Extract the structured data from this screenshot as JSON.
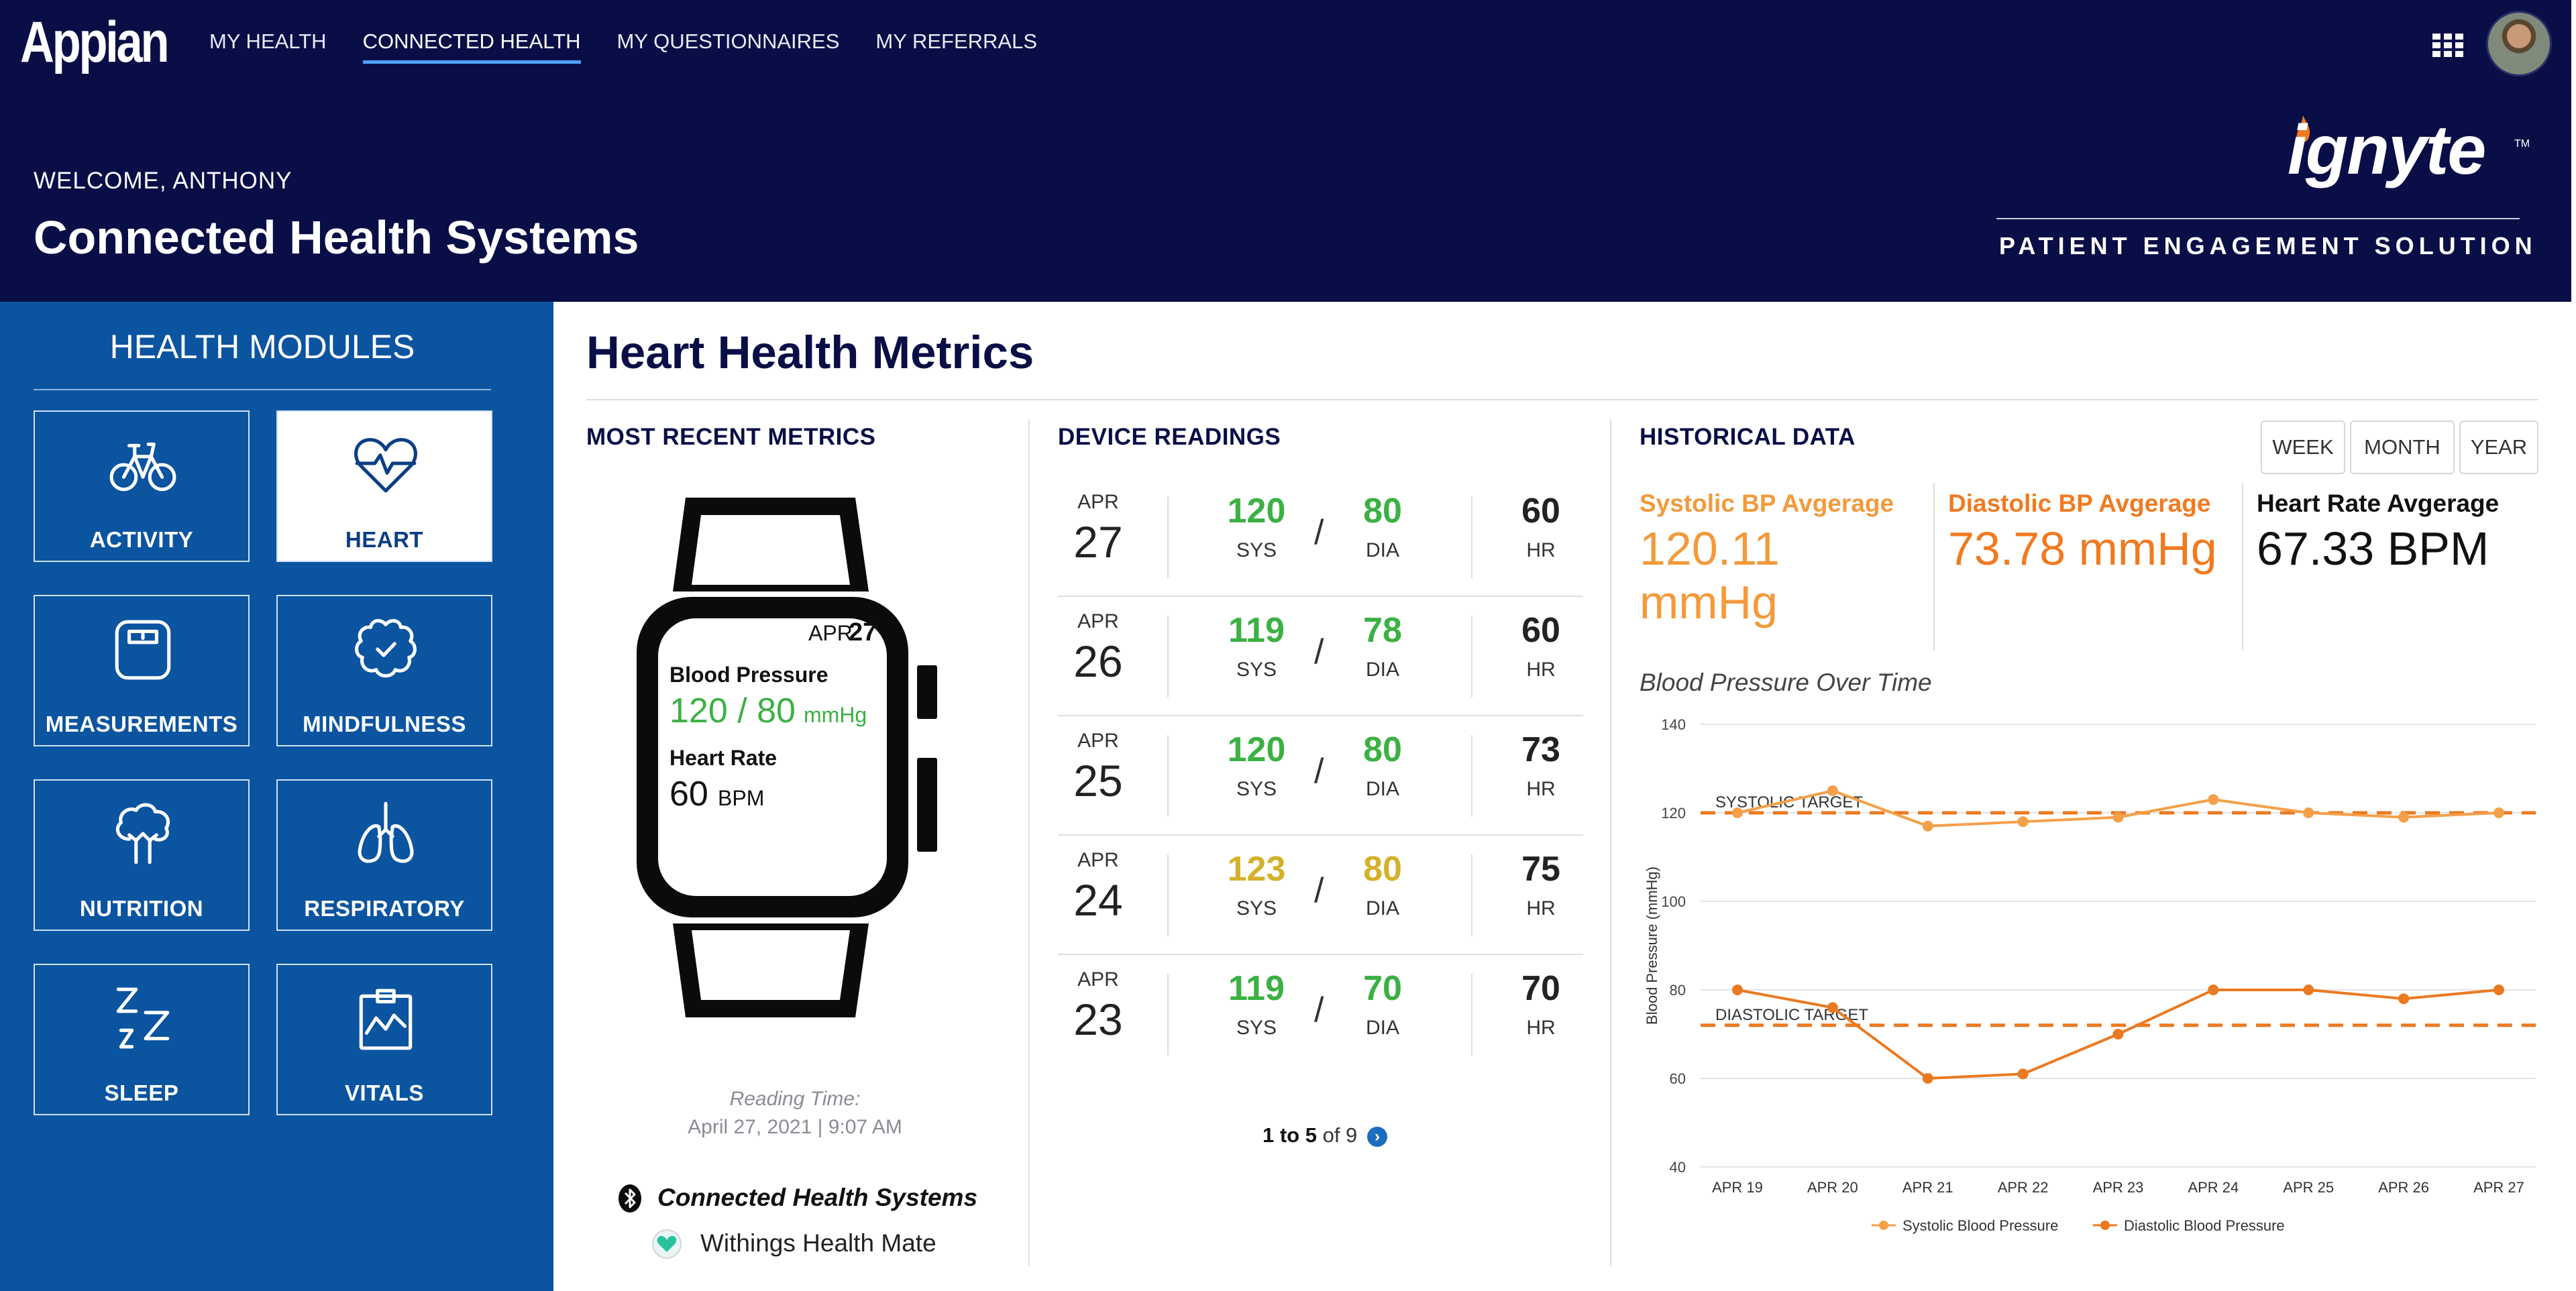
{
  "header": {
    "logo": "Appian",
    "nav": [
      "MY HEALTH",
      "CONNECTED HEALTH",
      "MY QUESTIONNAIRES",
      "MY REFERRALS"
    ],
    "nav_active_index": 1,
    "welcome": "WELCOME, ANTHONY",
    "title": "Connected Health Systems",
    "brand": "ignyte",
    "brand_tm": "TM",
    "brand_tagline": "PATIENT ENGAGEMENT SOLUTION"
  },
  "sidebar": {
    "title": "HEALTH MODULES",
    "modules": [
      {
        "label": "ACTIVITY",
        "icon": "bicycle-icon",
        "active": false
      },
      {
        "label": "HEART",
        "icon": "heart-pulse-icon",
        "active": true
      },
      {
        "label": "MEASUREMENTS",
        "icon": "scale-icon",
        "active": false
      },
      {
        "label": "MINDFULNESS",
        "icon": "brain-check-icon",
        "active": false
      },
      {
        "label": "NUTRITION",
        "icon": "broccoli-icon",
        "active": false
      },
      {
        "label": "RESPIRATORY",
        "icon": "lungs-icon",
        "active": false
      },
      {
        "label": "SLEEP",
        "icon": "sleep-zzz-icon",
        "active": false
      },
      {
        "label": "VITALS",
        "icon": "clipboard-chart-icon",
        "active": false
      }
    ]
  },
  "main": {
    "title": "Heart Health Metrics",
    "recent": {
      "title": "MOST RECENT METRICS",
      "date_month": "APR",
      "date_day": "27",
      "bp_label": "Blood Pressure",
      "bp_value": "120 / 80",
      "bp_unit": "mmHg",
      "hr_label": "Heart Rate",
      "hr_value": "60",
      "hr_unit": "BPM",
      "reading_time_label": "Reading Time:",
      "reading_time": "April 27, 2021  |  9:07 AM",
      "devices": [
        "Connected Health Systems",
        "Withings Health Mate"
      ]
    },
    "readings": {
      "title": "DEVICE READINGS",
      "sys_label": "SYS",
      "dia_label": "DIA",
      "hr_label": "HR",
      "rows": [
        {
          "month": "APR",
          "day": "27",
          "sys": "120",
          "dia": "80",
          "hr": "60",
          "color": "#3bb143"
        },
        {
          "month": "APR",
          "day": "26",
          "sys": "119",
          "dia": "78",
          "hr": "60",
          "color": "#3bb143"
        },
        {
          "month": "APR",
          "day": "25",
          "sys": "120",
          "dia": "80",
          "hr": "73",
          "color": "#3bb143"
        },
        {
          "month": "APR",
          "day": "24",
          "sys": "123",
          "dia": "80",
          "hr": "75",
          "color": "#d4b12a"
        },
        {
          "month": "APR",
          "day": "23",
          "sys": "119",
          "dia": "70",
          "hr": "70",
          "color": "#3bb143"
        }
      ],
      "pager_range": "1 to 5",
      "pager_total": "of 9"
    },
    "historical": {
      "title": "HISTORICAL DATA",
      "ranges": [
        "WEEK",
        "MONTH",
        "YEAR"
      ],
      "stats": [
        {
          "label": "Systolic BP Avgerage",
          "value": "120.11 mmHg",
          "color": "#f39a3c"
        },
        {
          "label": "Diastolic BP Avgerage",
          "value": "73.78 mmHg",
          "color": "#f07a21"
        },
        {
          "label": "Heart Rate Avgerage",
          "value": "67.33 BPM",
          "color": "#111111"
        }
      ],
      "chart_title": "Blood Pressure Over Time"
    }
  },
  "chart_data": {
    "type": "line",
    "title": "Blood Pressure Over Time",
    "xlabel": "",
    "ylabel": "Blood Pressure (mmHg)",
    "categories": [
      "APR 19",
      "APR 20",
      "APR 21",
      "APR 22",
      "APR 23",
      "APR 24",
      "APR 25",
      "APR 26",
      "APR 27"
    ],
    "ylim": [
      40,
      140
    ],
    "yticks": [
      40,
      60,
      80,
      100,
      120,
      140
    ],
    "grid": true,
    "legend_position": "bottom",
    "series": [
      {
        "name": "Systolic Blood Pressure",
        "values": [
          120,
          125,
          117,
          118,
          119,
          123,
          120,
          119,
          120
        ],
        "color": "#f5a04a"
      },
      {
        "name": "Diastolic Blood Pressure",
        "values": [
          80,
          76,
          60,
          61,
          70,
          80,
          80,
          78,
          80
        ],
        "color": "#ea7a22"
      }
    ],
    "reference_lines": [
      {
        "label": "SYSTOLIC TARGET",
        "value": 120,
        "color": "#ea7a22"
      },
      {
        "label": "DIASTOLIC TARGET",
        "value": 72,
        "color": "#ea7a22"
      }
    ]
  }
}
